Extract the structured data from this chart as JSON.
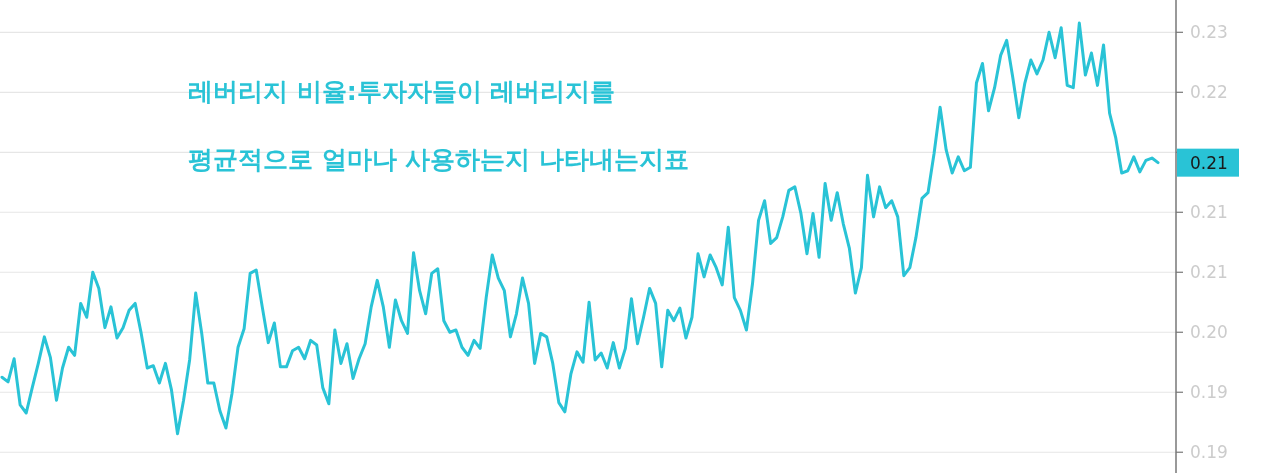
{
  "chart_data": {
    "type": "line",
    "title": "레버리지 비율:투자자들이 레버리지를\n평균적으로 얼마나 사용하는지 나타내는지표",
    "categories": [
      null,
      null,
      null,
      null,
      null,
      null,
      null,
      null,
      null,
      null,
      null,
      null,
      null,
      null,
      null,
      null,
      null,
      null,
      null,
      null,
      null,
      null,
      null,
      null,
      null,
      null,
      null,
      null,
      null,
      null,
      null,
      null,
      null,
      null,
      null,
      null,
      null,
      null,
      null,
      null,
      null,
      null,
      null,
      null,
      null,
      null,
      null,
      null,
      null,
      null,
      null,
      null,
      null,
      null,
      null,
      null,
      null,
      null,
      null,
      null,
      null,
      null,
      null,
      null,
      null,
      null,
      null,
      null,
      null,
      null,
      null,
      null,
      null,
      null,
      null,
      null,
      null,
      null,
      null,
      null,
      null,
      null,
      null,
      null,
      null,
      null,
      null,
      null,
      null,
      null,
      null,
      null,
      null,
      null,
      null,
      null,
      null,
      null,
      null,
      null,
      null,
      null,
      null,
      null,
      null,
      null,
      null,
      null,
      null,
      null,
      null,
      null,
      null,
      null,
      null,
      null,
      null,
      null,
      null,
      null,
      null,
      null,
      null,
      null,
      null,
      null,
      null,
      null,
      null,
      null,
      null,
      null,
      null,
      null,
      null,
      null,
      null,
      null,
      null,
      null,
      null,
      null,
      null,
      null,
      null,
      null,
      null,
      null,
      null,
      null,
      null,
      null,
      null,
      null,
      null,
      null,
      null,
      null,
      null,
      null,
      null,
      null,
      null,
      null,
      null,
      null,
      null,
      null,
      null,
      null,
      null,
      null,
      null,
      null,
      null,
      null,
      null,
      null,
      null,
      null,
      null,
      null,
      null,
      null,
      null,
      null,
      null,
      null,
      null,
      null,
      null,
      null
    ],
    "series": [
      {
        "color": "#29c3d6",
        "values": [
          0.1961,
          0.1957,
          0.1977,
          0.1937,
          0.193,
          0.1952,
          0.1973,
          0.1996,
          0.1978,
          0.1941,
          0.1969,
          0.1987,
          0.198,
          0.2025,
          0.2013,
          0.2052,
          0.2038,
          0.2004,
          0.2022,
          0.1995,
          0.2004,
          0.2019,
          0.2025,
          0.1999,
          0.1969,
          0.1971,
          0.1956,
          0.1973,
          0.195,
          0.1912,
          0.1941,
          0.1976,
          0.2034,
          0.1999,
          0.1956,
          0.1956,
          0.1932,
          0.1917,
          0.1947,
          0.1987,
          0.2003,
          0.2051,
          0.2054,
          0.2022,
          0.1991,
          0.2008,
          0.197,
          0.197,
          0.1984,
          0.1987,
          0.1977,
          0.1993,
          0.1989,
          0.1952,
          0.1938,
          0.2002,
          0.1973,
          0.199,
          0.196,
          0.1977,
          0.199,
          0.2022,
          0.2045,
          0.2022,
          0.1987,
          0.2028,
          0.201,
          0.1999,
          0.2069,
          0.2036,
          0.2016,
          0.2051,
          0.2055,
          0.201,
          0.2,
          0.2002,
          0.1987,
          0.198,
          0.1993,
          0.1986,
          0.203,
          0.2067,
          0.2047,
          0.2036,
          0.1996,
          0.2016,
          0.2047,
          0.2025,
          0.1973,
          0.1999,
          0.1996,
          0.1973,
          0.1939,
          0.1931,
          0.1964,
          0.1983,
          0.1974,
          0.2026,
          0.1976,
          0.1982,
          0.1969,
          0.1991,
          0.1969,
          0.1986,
          0.2029,
          0.199,
          0.2013,
          0.2038,
          0.2025,
          0.197,
          0.2019,
          0.201,
          0.2021,
          0.1995,
          0.2013,
          0.2068,
          0.2048,
          0.2067,
          0.2056,
          0.2041,
          0.2091,
          0.203,
          0.2019,
          0.2002,
          0.2042,
          0.2097,
          0.2114,
          0.2077,
          0.2082,
          0.21,
          0.2123,
          0.2126,
          0.2103,
          0.2068,
          0.2103,
          0.2065,
          0.2129,
          0.2097,
          0.2121,
          0.2094,
          0.2073,
          0.2034,
          0.2056,
          0.2136,
          0.21,
          0.2126,
          0.2108,
          0.2114,
          0.21,
          0.2049,
          0.2056,
          0.2082,
          0.2116,
          0.2121,
          0.2155,
          0.2195,
          0.2158,
          0.2138,
          0.2152,
          0.214,
          0.2143,
          0.2216,
          0.2233,
          0.2192,
          0.2212,
          0.224,
          0.2253,
          0.2221,
          0.2186,
          0.2216,
          0.2236,
          0.2224,
          0.2236,
          0.226,
          0.2238,
          0.2264,
          0.2214,
          0.2212,
          0.2268,
          0.2223,
          0.2242,
          0.2214,
          0.2249,
          0.219,
          0.2169,
          0.2138,
          0.214,
          0.2152,
          0.2139,
          0.2149,
          0.2151,
          0.2147
        ]
      }
    ],
    "ylim": [
      0.1878,
      0.2288
    ],
    "yticks": [
      {
        "value": 0.226,
        "label": "0.23"
      },
      {
        "value": 0.2208,
        "label": "0.22"
      },
      {
        "value": 0.2156,
        "label": null
      },
      {
        "value": 0.2104,
        "label": "0.21"
      },
      {
        "value": 0.2052,
        "label": "0.21"
      },
      {
        "value": 0.2,
        "label": "0.20"
      },
      {
        "value": 0.1948,
        "label": "0.19"
      },
      {
        "value": 0.1896,
        "label": "0.19"
      }
    ],
    "annotations": [
      "0.21"
    ],
    "grid": "y",
    "tick_labels": "y",
    "line_style": "solid"
  }
}
